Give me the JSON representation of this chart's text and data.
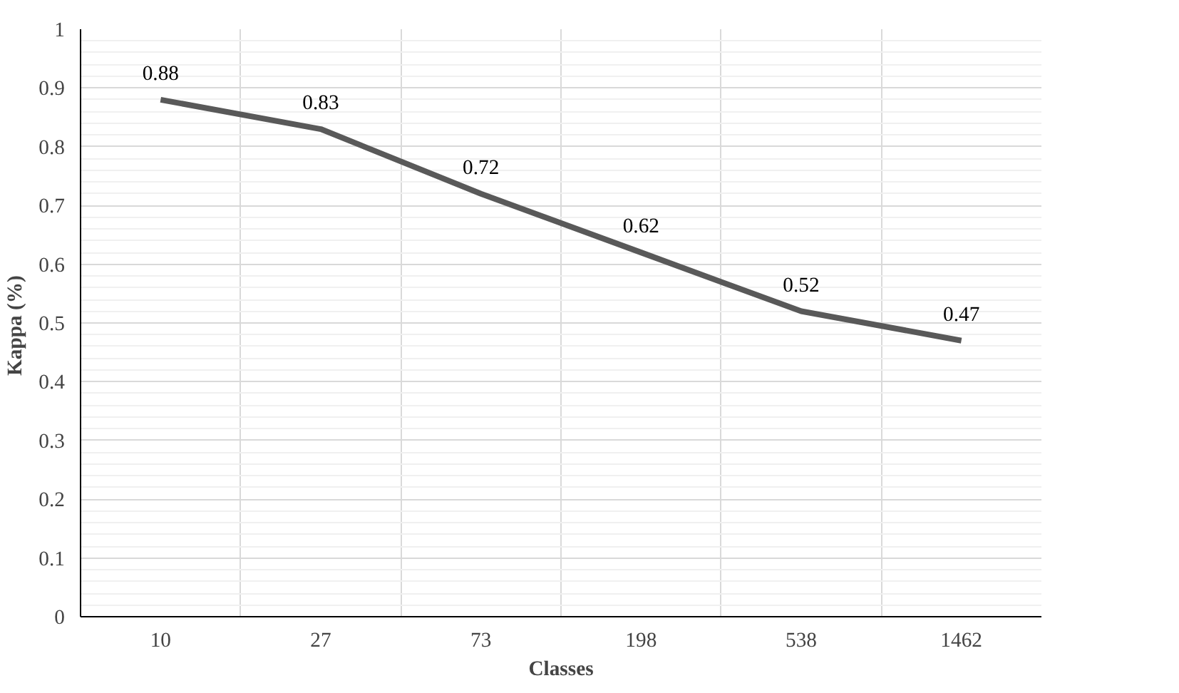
{
  "chart_data": {
    "type": "line",
    "xlabel": "Classes",
    "ylabel": "Kappa  (%)",
    "categories": [
      "10",
      "27",
      "73",
      "198",
      "538",
      "1462"
    ],
    "series": [
      {
        "color": "#595959",
        "values": [
          0.88,
          0.83,
          0.72,
          0.62,
          0.52,
          0.47
        ]
      }
    ],
    "ylim": [
      0,
      1
    ],
    "yticks": [
      0,
      0.1,
      0.2,
      0.3,
      0.4,
      0.5,
      0.6,
      0.7,
      0.8,
      0.9,
      1
    ],
    "grid": true,
    "data_labels": true,
    "marker": "none",
    "line_style": "solid"
  }
}
